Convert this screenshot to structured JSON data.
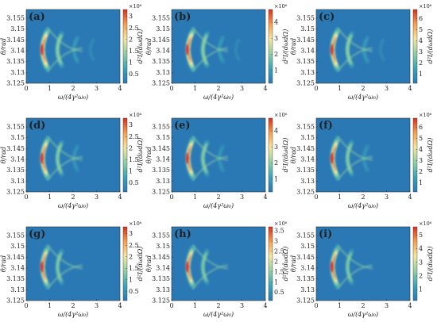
{
  "figure": {
    "x_label": "ω/(4γ²ω₀)",
    "y_label": "θ/rad",
    "colorbar_label": "d²I/(dωdΩ)",
    "colormap": [
      "#2a79b5",
      "#3aa5b7",
      "#8fd0a4",
      "#f4e7a1",
      "#f7a04f",
      "#d7301f"
    ]
  },
  "chart_data": [
    {
      "type": "heatmap",
      "panel": "(a)",
      "ridges": 4,
      "x": [
        0,
        1,
        2,
        3,
        4
      ],
      "y": [
        3.125,
        3.13,
        3.135,
        3.14,
        3.145,
        3.15,
        3.155
      ],
      "xlim": [
        0,
        4
      ],
      "ylim": [
        3.125,
        3.159
      ],
      "colorbar": {
        "ticks": [
          0.5,
          1,
          1.5,
          2,
          2.5,
          3
        ],
        "exponent": "×10⁶",
        "range": [
          0.1,
          3.3
        ]
      }
    },
    {
      "type": "heatmap",
      "panel": "(b)",
      "ridges": 4,
      "x": [
        0,
        1,
        2,
        3,
        4
      ],
      "y": [
        3.125,
        3.13,
        3.135,
        3.14,
        3.145,
        3.15,
        3.155
      ],
      "xlim": [
        0,
        4
      ],
      "ylim": [
        3.125,
        3.159
      ],
      "colorbar": {
        "ticks": [
          1,
          2,
          3,
          4
        ],
        "exponent": "×10⁶",
        "range": [
          0.2,
          4.8
        ]
      }
    },
    {
      "type": "heatmap",
      "panel": "(c)",
      "ridges": 4,
      "x": [
        0,
        1,
        2,
        3,
        4
      ],
      "y": [
        3.125,
        3.13,
        3.135,
        3.14,
        3.145,
        3.15,
        3.155
      ],
      "xlim": [
        0,
        4
      ],
      "ylim": [
        3.125,
        3.159
      ],
      "colorbar": {
        "ticks": [
          1,
          2,
          3,
          4,
          5,
          6
        ],
        "exponent": "×10⁶",
        "range": [
          0.2,
          6.8
        ]
      }
    },
    {
      "type": "heatmap",
      "panel": "(d)",
      "ridges": 3,
      "x": [
        0,
        1,
        2,
        3,
        4
      ],
      "y": [
        3.125,
        3.13,
        3.135,
        3.14,
        3.145,
        3.15,
        3.155
      ],
      "xlim": [
        0,
        4
      ],
      "ylim": [
        3.125,
        3.159
      ],
      "colorbar": {
        "ticks": [
          0.5,
          1,
          1.5,
          2,
          2.5,
          3
        ],
        "exponent": "×10⁶",
        "range": [
          0.1,
          3.3
        ]
      }
    },
    {
      "type": "heatmap",
      "panel": "(e)",
      "ridges": 3,
      "x": [
        0,
        1,
        2,
        3,
        4
      ],
      "y": [
        3.125,
        3.13,
        3.135,
        3.14,
        3.145,
        3.15,
        3.155
      ],
      "xlim": [
        0,
        4
      ],
      "ylim": [
        3.125,
        3.159
      ],
      "colorbar": {
        "ticks": [
          1,
          2,
          3,
          4
        ],
        "exponent": "×10⁶",
        "range": [
          0.2,
          4.8
        ]
      }
    },
    {
      "type": "heatmap",
      "panel": "(f)",
      "ridges": 3,
      "x": [
        0,
        1,
        2,
        3,
        4
      ],
      "y": [
        3.125,
        3.13,
        3.135,
        3.14,
        3.145,
        3.15,
        3.155
      ],
      "xlim": [
        0,
        4
      ],
      "ylim": [
        3.125,
        3.159
      ],
      "colorbar": {
        "ticks": [
          1,
          2,
          3,
          4,
          5,
          6
        ],
        "exponent": "×10⁶",
        "range": [
          0.2,
          6.8
        ]
      }
    },
    {
      "type": "heatmap",
      "panel": "(g)",
      "ridges": 2,
      "x": [
        0,
        1,
        2,
        3,
        4
      ],
      "y": [
        3.125,
        3.13,
        3.135,
        3.14,
        3.145,
        3.15,
        3.155
      ],
      "xlim": [
        0,
        4
      ],
      "ylim": [
        3.125,
        3.159
      ],
      "colorbar": {
        "ticks": [
          0.5,
          1,
          1.5,
          2,
          2.5,
          3
        ],
        "exponent": "×10⁶",
        "range": [
          0.1,
          3.3
        ]
      }
    },
    {
      "type": "heatmap",
      "panel": "(h)",
      "ridges": 2,
      "x": [
        0,
        1,
        2,
        3,
        4
      ],
      "y": [
        3.125,
        3.13,
        3.135,
        3.14,
        3.145,
        3.15,
        3.155
      ],
      "xlim": [
        0,
        4
      ],
      "ylim": [
        3.125,
        3.159
      ],
      "colorbar": {
        "ticks": [
          0.5,
          1,
          1.5,
          2,
          2.5,
          3,
          3.5
        ],
        "exponent": "×10⁶",
        "range": [
          0.1,
          3.7
        ]
      }
    },
    {
      "type": "heatmap",
      "panel": "(i)",
      "ridges": 2,
      "x": [
        0,
        1,
        2,
        3,
        4
      ],
      "y": [
        3.125,
        3.13,
        3.135,
        3.14,
        3.145,
        3.15,
        3.155
      ],
      "xlim": [
        0,
        4
      ],
      "ylim": [
        3.125,
        3.159
      ],
      "colorbar": {
        "ticks": [
          1,
          2,
          3,
          4,
          5
        ],
        "exponent": "×10⁶",
        "range": [
          0.2,
          5.6
        ]
      }
    }
  ]
}
